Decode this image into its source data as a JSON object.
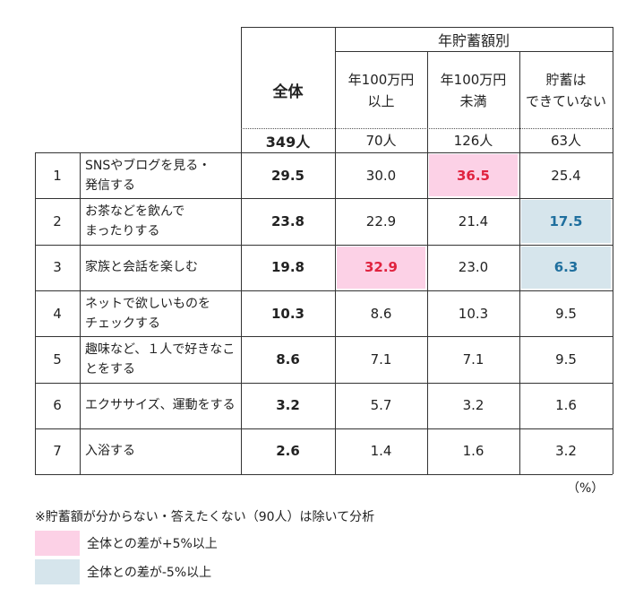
{
  "chart_data": {
    "type": "table",
    "group_header": "年貯蓄額別",
    "columns": [
      {
        "id": "all",
        "label": "全体",
        "n": "349人"
      },
      {
        "id": "over1m",
        "label": "年100万円 以上",
        "label_lines": [
          "年100万円",
          "以上"
        ],
        "n": "70人"
      },
      {
        "id": "under1m",
        "label": "年100万円 未満",
        "label_lines": [
          "年100万円",
          "未満"
        ],
        "n": "126人"
      },
      {
        "id": "none",
        "label": "貯蓄は できていない",
        "label_lines": [
          "貯蓄は",
          "できていない"
        ],
        "n": "63人"
      }
    ],
    "rows": [
      {
        "rank": "1",
        "label": "SNSやブログを見る・発信する",
        "label_lines": [
          "SNSやブログを見る・",
          "発信する"
        ],
        "values": [
          "29.5",
          "30.0",
          "36.5",
          "25.4"
        ],
        "highlight": [
          "",
          "",
          "hi",
          ""
        ]
      },
      {
        "rank": "2",
        "label": "お茶などを飲んでまったりする",
        "label_lines": [
          "お茶などを飲んで",
          "まったりする"
        ],
        "values": [
          "23.8",
          "22.9",
          "21.4",
          "17.5"
        ],
        "highlight": [
          "",
          "",
          "",
          "lo"
        ]
      },
      {
        "rank": "3",
        "label": "家族と会話を楽しむ",
        "label_lines": [
          "家族と会話を楽しむ"
        ],
        "values": [
          "19.8",
          "32.9",
          "23.0",
          "6.3"
        ],
        "highlight": [
          "",
          "hi",
          "",
          "lo"
        ]
      },
      {
        "rank": "4",
        "label": "ネットで欲しいものをチェックする",
        "label_lines": [
          "ネットで欲しいものを",
          "チェックする"
        ],
        "values": [
          "10.3",
          "8.6",
          "10.3",
          "9.5"
        ],
        "highlight": [
          "",
          "",
          "",
          ""
        ]
      },
      {
        "rank": "5",
        "label": "趣味など、１人で好きなことをする",
        "label_lines": [
          "趣味など、１人で好きなこ",
          "とをする"
        ],
        "values": [
          "8.6",
          "7.1",
          "7.1",
          "9.5"
        ],
        "highlight": [
          "",
          "",
          "",
          ""
        ]
      },
      {
        "rank": "6",
        "label": "エクササイズ、運動をする",
        "label_lines": [
          "エクササイズ、運動をする"
        ],
        "values": [
          "3.2",
          "5.7",
          "3.2",
          "1.6"
        ],
        "highlight": [
          "",
          "",
          "",
          ""
        ]
      },
      {
        "rank": "7",
        "label": "入浴する",
        "label_lines": [
          "入浴する"
        ],
        "values": [
          "2.6",
          "1.4",
          "1.6",
          "3.2"
        ],
        "highlight": [
          "",
          "",
          "",
          ""
        ]
      }
    ],
    "unit": "（%）"
  },
  "note": "※貯蓄額が分からない・答えたくない（90人）は除いて分析",
  "legend": [
    {
      "key": "hi",
      "color": "#fcd1e6",
      "label": "全体との差が+5%以上"
    },
    {
      "key": "lo",
      "color": "#d6e5ec",
      "label": "全体との差が-5%以上"
    }
  ],
  "colors": {
    "hi_text": "#e0233f",
    "lo_text": "#1f6f9e"
  }
}
